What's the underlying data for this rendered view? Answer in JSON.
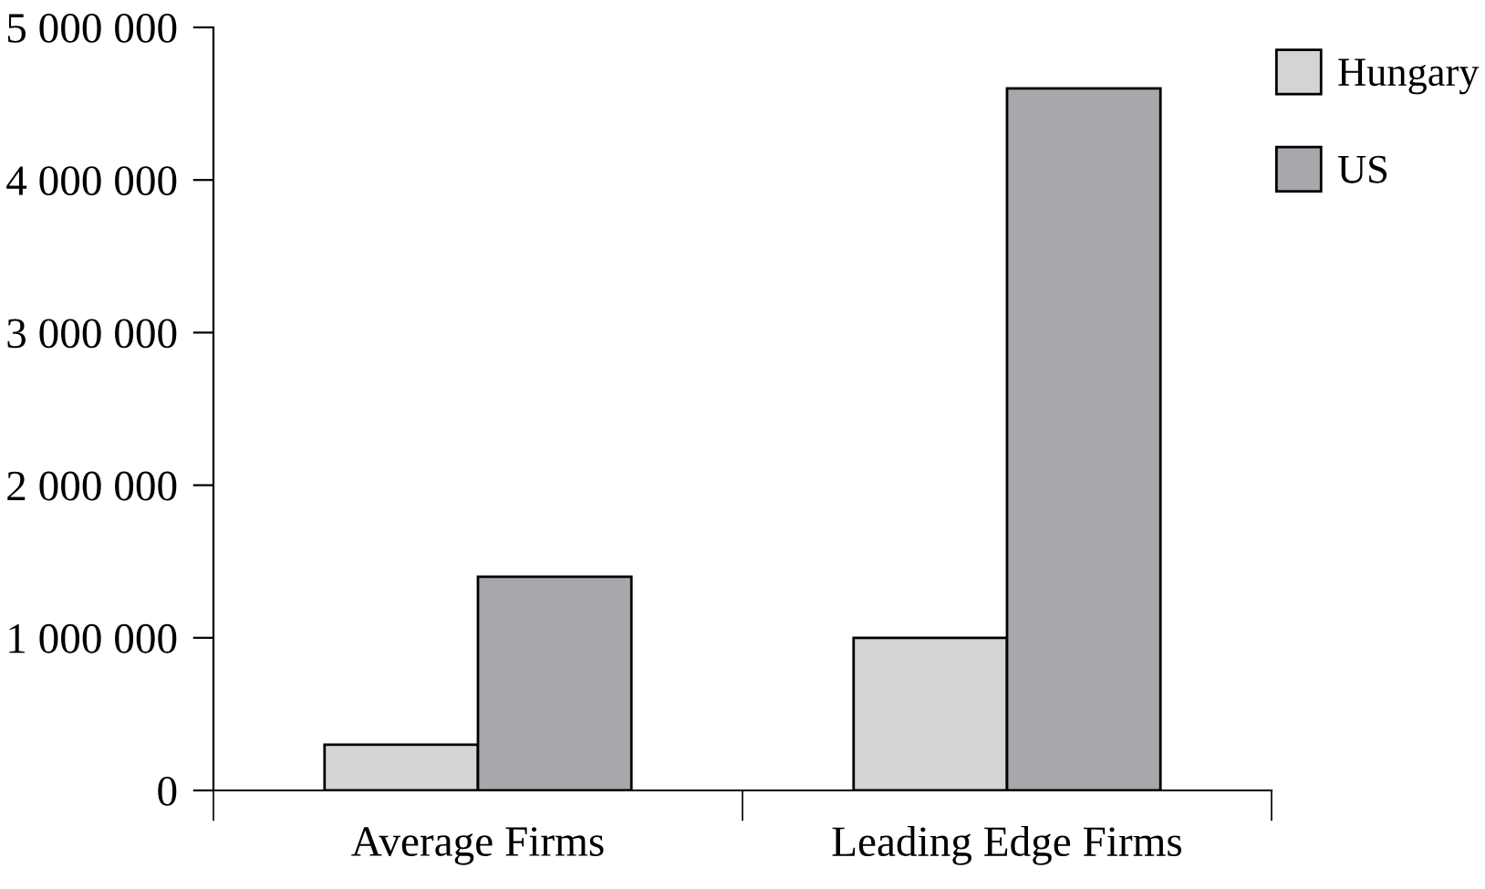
{
  "chart_data": {
    "type": "bar",
    "categories": [
      "Average Firms",
      "Leading Edge Firms"
    ],
    "series": [
      {
        "name": "Hungary",
        "color": "#d3d4d6",
        "values": [
          300000,
          1000000
        ]
      },
      {
        "name": "US",
        "color": "#a7a8ac",
        "values": [
          1400000,
          4600000
        ]
      }
    ],
    "ylim": [
      0,
      5000000
    ],
    "yticks": [
      {
        "value": 0,
        "label": "0"
      },
      {
        "value": 1000000,
        "label": "1 000 000"
      },
      {
        "value": 2000000,
        "label": "2 000 000"
      },
      {
        "value": 3000000,
        "label": "3 000 000"
      },
      {
        "value": 4000000,
        "label": "4 000 000"
      },
      {
        "value": 5000000,
        "label": "5 000 000"
      }
    ],
    "grid": false,
    "legend": "top right"
  }
}
